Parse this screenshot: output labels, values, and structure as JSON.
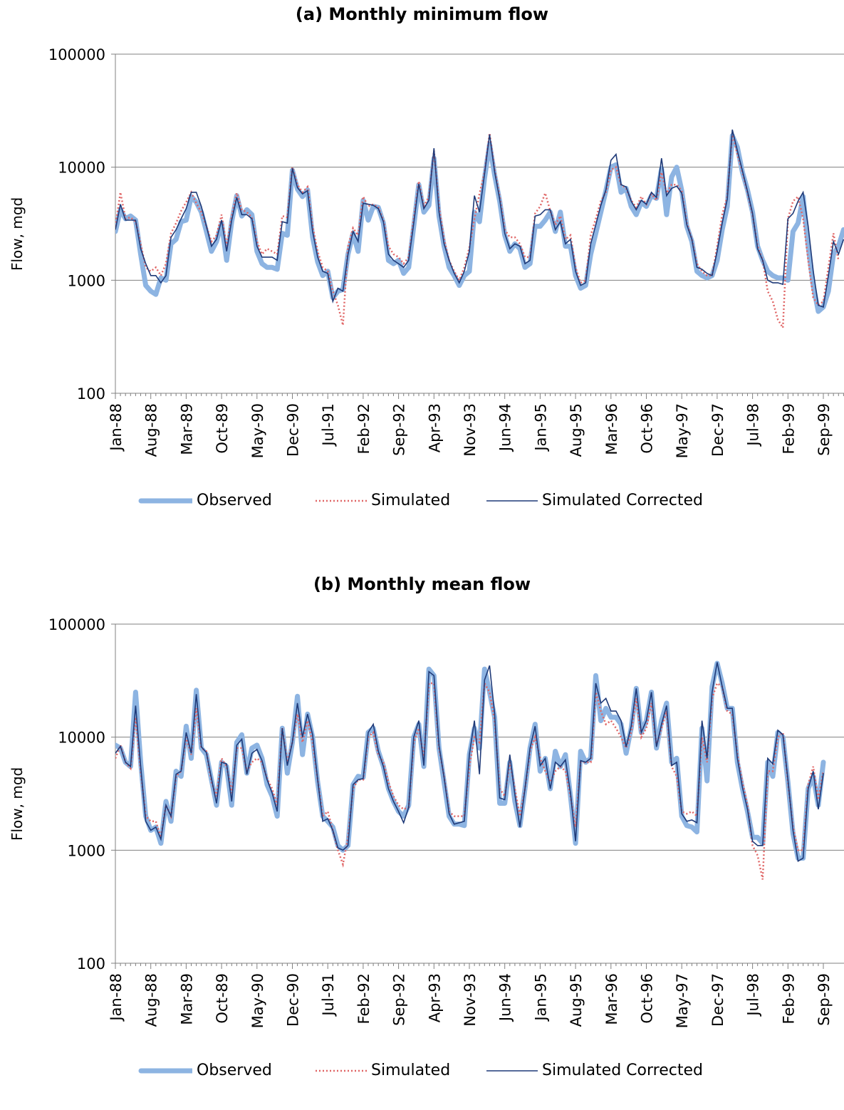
{
  "chart_data": [
    {
      "type": "line",
      "title": "(a) Monthly minimum flow",
      "ylabel": "Flow, mgd",
      "xlabel": "",
      "yscale": "log",
      "ylim": [
        100,
        100000
      ],
      "yticks": [
        "100",
        "1000",
        "10000",
        "100000"
      ],
      "x_tick_labels": [
        "Jan-88",
        "Aug-88",
        "Mar-89",
        "Oct-89",
        "May-90",
        "Dec-90",
        "Jul-91",
        "Feb-92",
        "Sep-92",
        "Apr-93",
        "Nov-93",
        "Jun-94",
        "Jan-95",
        "Aug-95",
        "Mar-96",
        "Oct-96",
        "May-97",
        "Dec-97",
        "Jul-98",
        "Feb-99",
        "Sep-99"
      ],
      "grid": "horizontal",
      "legend": "bottom",
      "series": [
        {
          "name": "Observed",
          "color": "#8db4e2",
          "style": "thick",
          "values": [
            2700,
            4200,
            3500,
            3700,
            3400,
            1700,
            900,
            800,
            750,
            1050,
            1000,
            2100,
            2300,
            3300,
            3400,
            5500,
            4900,
            4000,
            2700,
            1800,
            2200,
            3200,
            1500,
            3300,
            5600,
            3700,
            4200,
            3800,
            1800,
            1400,
            1300,
            1300,
            1250,
            2600,
            2500,
            9400,
            6400,
            5500,
            6300,
            2400,
            1450,
            1100,
            1200,
            700,
            800,
            830,
            1700,
            2600,
            1800,
            5100,
            3400,
            4500,
            4400,
            3200,
            1500,
            1400,
            1500,
            1150,
            1300,
            3000,
            7000,
            4000,
            4600,
            12000,
            3700,
            2000,
            1300,
            1100,
            900,
            1100,
            1200,
            4000,
            3300,
            8000,
            16000,
            8500,
            5000,
            2500,
            1800,
            2100,
            1900,
            1300,
            1400,
            3000,
            3000,
            3400,
            4000,
            2700,
            4000,
            2000,
            2000,
            1100,
            850,
            900,
            1700,
            2600,
            4000,
            6200,
            10000,
            10500,
            6000,
            6500,
            4500,
            3800,
            4900,
            4500,
            5600,
            5300,
            9700,
            3800,
            8200,
            10000,
            6200,
            3000,
            2200,
            1200,
            1100,
            1050,
            1100,
            1500,
            2800,
            4500,
            19000,
            15000,
            9000,
            6300,
            4000,
            2000,
            1500,
            1200,
            1100,
            1050,
            1050,
            1000,
            2700,
            3200,
            5500,
            2000,
            900,
            530,
            580,
            800,
            1700,
            2000,
            2800
          ]
        },
        {
          "name": "Simulated",
          "color": "#e06666",
          "style": "dotted",
          "values": [
            3000,
            6000,
            3500,
            3600,
            3300,
            2100,
            1300,
            1200,
            1300,
            1100,
            1400,
            2600,
            3200,
            4100,
            4900,
            6000,
            4800,
            4000,
            3000,
            2200,
            2500,
            3800,
            2000,
            3700,
            5900,
            4200,
            4000,
            3600,
            2200,
            1700,
            1900,
            1800,
            1700,
            3700,
            3600,
            10000,
            7000,
            6000,
            6700,
            3000,
            1800,
            1300,
            1200,
            800,
            600,
            400,
            2000,
            2900,
            2500,
            5500,
            4500,
            4700,
            4400,
            3400,
            2000,
            1700,
            1600,
            1400,
            1600,
            3500,
            7500,
            4500,
            5500,
            14000,
            4500,
            2300,
            1500,
            1200,
            1000,
            1300,
            1950,
            3500,
            5800,
            9000,
            20000,
            9500,
            5500,
            2800,
            2400,
            2400,
            2100,
            1600,
            1600,
            3900,
            4500,
            5900,
            4100,
            3100,
            3700,
            2300,
            2500,
            1300,
            950,
            1000,
            2500,
            3500,
            5000,
            6000,
            9500,
            10000,
            7000,
            6500,
            5100,
            4400,
            5500,
            4700,
            5800,
            5100,
            9000,
            5900,
            7000,
            7000,
            6200,
            3200,
            2300,
            1400,
            1200,
            1100,
            1100,
            2000,
            3800,
            5500,
            20000,
            13000,
            9000,
            6000,
            3800,
            2000,
            1500,
            800,
            650,
            450,
            380,
            3500,
            5000,
            5500,
            3500,
            1500,
            700,
            600,
            650,
            1300,
            2600,
            1500
          ]
        },
        {
          "name": "Simulated Corrected",
          "color": "#1f3a78",
          "style": "thin",
          "values": [
            2800,
            4700,
            3400,
            3400,
            3400,
            1900,
            1400,
            1100,
            1100,
            950,
            1100,
            2400,
            2800,
            3500,
            4300,
            6000,
            6000,
            4500,
            3000,
            2000,
            2300,
            3400,
            1800,
            3400,
            5400,
            3800,
            3800,
            3500,
            2000,
            1600,
            1600,
            1600,
            1500,
            3300,
            3200,
            9800,
            6600,
            5800,
            6200,
            2700,
            1600,
            1200,
            1150,
            650,
            850,
            800,
            1700,
            2700,
            2200,
            4800,
            4700,
            4600,
            4300,
            3300,
            1700,
            1500,
            1400,
            1300,
            1500,
            3200,
            7100,
            4300,
            5100,
            14700,
            4000,
            2100,
            1500,
            1150,
            950,
            1200,
            1800,
            5600,
            4000,
            8700,
            19500,
            9100,
            5200,
            2600,
            1900,
            2100,
            2000,
            1400,
            1500,
            3700,
            3800,
            4200,
            4200,
            2800,
            3300,
            2100,
            2300,
            1200,
            900,
            950,
            2100,
            3100,
            4600,
            6300,
            11500,
            13000,
            7000,
            6700,
            5000,
            4200,
            5100,
            4700,
            6000,
            5400,
            12000,
            5600,
            6500,
            6800,
            5900,
            3100,
            2300,
            1300,
            1250,
            1150,
            1100,
            1800,
            3200,
            5200,
            21500,
            14000,
            9300,
            6100,
            3900,
            1900,
            1500,
            1000,
            950,
            950,
            920,
            3500,
            3900,
            5000,
            6000,
            3000,
            1200,
            600,
            580,
            1100,
            2200,
            1700,
            2300
          ]
        }
      ]
    },
    {
      "type": "line",
      "title": "(b) Monthly mean flow",
      "ylabel": "Flow, mgd",
      "xlabel": "",
      "yscale": "log",
      "ylim": [
        100,
        100000
      ],
      "yticks": [
        "100",
        "1000",
        "10000",
        "100000"
      ],
      "x_tick_labels": [
        "Jan-88",
        "Aug-88",
        "Mar-89",
        "Oct-89",
        "May-90",
        "Dec-90",
        "Jul-91",
        "Feb-92",
        "Sep-92",
        "Apr-93",
        "Nov-93",
        "Jun-94",
        "Jan-95",
        "Aug-95",
        "Mar-96",
        "Oct-96",
        "May-97",
        "Dec-97",
        "Jul-98",
        "Feb-99",
        "Sep-99"
      ],
      "grid": "horizontal",
      "legend": "bottom",
      "series": [
        {
          "name": "Observed",
          "color": "#8db4e2",
          "style": "thick",
          "values": [
            8500,
            8000,
            6000,
            5500,
            25000,
            6000,
            2000,
            1500,
            1600,
            1150,
            2700,
            1800,
            5000,
            4500,
            12500,
            6500,
            26000,
            8000,
            7000,
            4200,
            2500,
            6000,
            5500,
            2500,
            9000,
            10500,
            4800,
            8000,
            8500,
            6500,
            3800,
            3000,
            2000,
            12000,
            4800,
            9000,
            23000,
            7000,
            16000,
            10000,
            4000,
            2000,
            1800,
            1600,
            1100,
            1000,
            1100,
            3800,
            4500,
            4400,
            11000,
            12000,
            7500,
            5500,
            3500,
            2700,
            2200,
            2000,
            2500,
            10000,
            13000,
            5500,
            40000,
            35000,
            8000,
            4000,
            2000,
            1700,
            1700,
            1650,
            7000,
            12000,
            8000,
            40000,
            25000,
            15000,
            2600,
            2600,
            6000,
            2700,
            1650,
            3500,
            8000,
            13000,
            5000,
            6500,
            3500,
            7500,
            5500,
            7000,
            3000,
            1150,
            7500,
            6000,
            6500,
            35000,
            14000,
            18000,
            15000,
            15000,
            13000,
            7200,
            12000,
            27000,
            11000,
            14000,
            25000,
            8000,
            14000,
            20000,
            6000,
            6500,
            2000,
            1650,
            1600,
            1450,
            12000,
            4100,
            28000,
            45000,
            30000,
            18000,
            18000,
            6000,
            3500,
            2200,
            1300,
            1300,
            1150,
            6000,
            4500,
            11000,
            10000,
            4000,
            1400,
            850,
            850,
            3500,
            4500,
            2500,
            6000
          ]
        },
        {
          "name": "Simulated",
          "color": "#e06666",
          "style": "dotted",
          "values": [
            6500,
            8500,
            6000,
            5300,
            15000,
            5000,
            2000,
            1800,
            1800,
            1300,
            2500,
            2000,
            4500,
            5000,
            10000,
            7000,
            18000,
            8000,
            7500,
            4000,
            3000,
            6500,
            5500,
            3200,
            8000,
            8000,
            5000,
            6000,
            6500,
            6000,
            4300,
            3500,
            2500,
            12000,
            6000,
            9000,
            16000,
            9000,
            14000,
            9000,
            4200,
            2000,
            2200,
            1500,
            1000,
            750,
            1300,
            3500,
            4200,
            4200,
            10000,
            11000,
            7000,
            6000,
            4000,
            3000,
            2500,
            2300,
            2400,
            9000,
            12000,
            6500,
            30000,
            30000,
            8000,
            4500,
            2200,
            2000,
            2000,
            2000,
            5500,
            10000,
            9000,
            30000,
            25000,
            14000,
            3500,
            3000,
            6000,
            3500,
            2000,
            3500,
            7500,
            10000,
            6500,
            5000,
            4000,
            5000,
            5500,
            5000,
            3000,
            1600,
            6000,
            6000,
            6000,
            25000,
            17000,
            13000,
            14000,
            12000,
            10000,
            8000,
            11000,
            22000,
            10000,
            12000,
            20000,
            8500,
            12000,
            17000,
            5500,
            4500,
            2200,
            2100,
            2200,
            2000,
            10000,
            6000,
            22000,
            30000,
            28000,
            17000,
            16000,
            7000,
            4000,
            2500,
            1100,
            900,
            550,
            5000,
            5000,
            10000,
            11000,
            4000,
            1600,
            1000,
            1000,
            3800,
            5500,
            2800,
            5000
          ]
        },
        {
          "name": "Simulated Corrected",
          "color": "#1f3a78",
          "style": "thin",
          "values": [
            7200,
            8300,
            6000,
            5500,
            19000,
            5500,
            1800,
            1500,
            1600,
            1250,
            2500,
            2000,
            4700,
            5000,
            11000,
            7200,
            24000,
            8200,
            7300,
            4300,
            2600,
            6000,
            5800,
            2700,
            8500,
            9600,
            4700,
            7200,
            7800,
            6200,
            4200,
            3200,
            2200,
            12000,
            5600,
            9000,
            20000,
            10000,
            16000,
            10500,
            4200,
            1800,
            1900,
            1500,
            1050,
            1000,
            1100,
            3800,
            4200,
            4300,
            11000,
            13000,
            7500,
            5500,
            3500,
            2700,
            2200,
            1750,
            2400,
            10000,
            14000,
            5600,
            38000,
            35000,
            8400,
            4400,
            2100,
            1700,
            1750,
            1800,
            7000,
            14000,
            4700,
            32000,
            43000,
            16000,
            2900,
            2800,
            7000,
            3100,
            1600,
            3500,
            8000,
            12500,
            5600,
            6500,
            3500,
            6000,
            5500,
            6300,
            3200,
            1200,
            6200,
            6000,
            6500,
            30000,
            20000,
            22000,
            17000,
            17000,
            14000,
            8200,
            12500,
            27000,
            11000,
            14000,
            25000,
            8200,
            13000,
            19000,
            5600,
            6000,
            2100,
            1800,
            1850,
            1750,
            14000,
            6500,
            25000,
            46000,
            28000,
            18000,
            18000,
            6500,
            3600,
            2300,
            1200,
            1100,
            1100,
            6500,
            5800,
            11500,
            10500,
            4200,
            1500,
            800,
            850,
            3500,
            5000,
            2300,
            4800
          ]
        }
      ]
    }
  ]
}
